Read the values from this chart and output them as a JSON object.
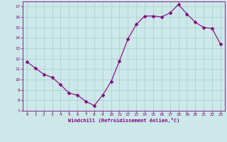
{
  "x": [
    0,
    1,
    2,
    3,
    4,
    5,
    6,
    7,
    8,
    9,
    10,
    11,
    12,
    13,
    14,
    15,
    16,
    17,
    18,
    19,
    20,
    21,
    22,
    23
  ],
  "y": [
    11.7,
    11.1,
    10.5,
    10.2,
    9.5,
    8.7,
    8.5,
    7.9,
    7.5,
    8.5,
    9.8,
    11.8,
    13.9,
    15.3,
    16.1,
    16.1,
    16.0,
    16.4,
    17.2,
    16.3,
    15.5,
    15.0,
    14.9,
    13.4
  ],
  "line_color": "#800080",
  "marker": "D",
  "marker_size": 2.5,
  "bg_color": "#cce8e8",
  "grid_color": "#aacccc",
  "xlabel": "Windchill (Refroidissement éolien,°C)",
  "xlim": [
    -0.5,
    23.5
  ],
  "ylim": [
    7,
    17.5
  ],
  "yticks": [
    7,
    8,
    9,
    10,
    11,
    12,
    13,
    14,
    15,
    16,
    17
  ],
  "xticks": [
    0,
    1,
    2,
    3,
    4,
    5,
    6,
    7,
    8,
    9,
    10,
    11,
    12,
    13,
    14,
    15,
    16,
    17,
    18,
    19,
    20,
    21,
    22,
    23
  ],
  "tick_color": "#800080",
  "label_color": "#800080",
  "spine_color": "#800080"
}
